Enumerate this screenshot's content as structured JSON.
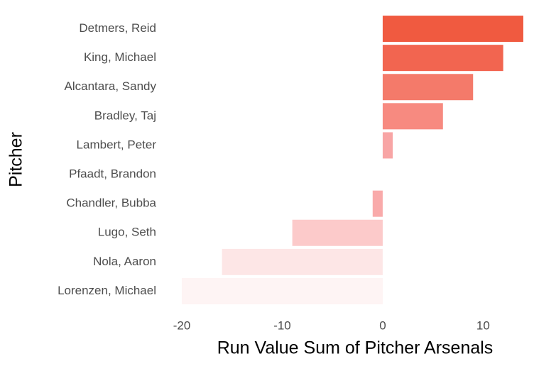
{
  "chart_data": {
    "type": "barh",
    "x_label": "Run Value Sum of Pitcher Arsenals",
    "y_label": "Pitcher",
    "categories": [
      "Detmers, Reid",
      "King, Michael",
      "Alcantara, Sandy",
      "Bradley, Taj",
      "Lambert, Peter",
      "Pfaadt, Brandon",
      "Chandler, Bubba",
      "Lugo, Seth",
      "Nola, Aaron",
      "Lorenzen, Michael"
    ],
    "values": [
      14,
      12,
      9,
      6,
      1,
      0,
      -1,
      -9,
      -16,
      -20
    ],
    "colors": [
      "#f05a40",
      "#f26550",
      "#f47a6a",
      "#f78a80",
      "#f8a5a5",
      "#f9aaaa",
      "#f9aaaa",
      "#fccaca",
      "#fde6e6",
      "#fef4f4"
    ],
    "xlim": [
      -21.7,
      15.7
    ],
    "xticks": [
      -20,
      -10,
      0,
      10
    ],
    "grid": false
  }
}
